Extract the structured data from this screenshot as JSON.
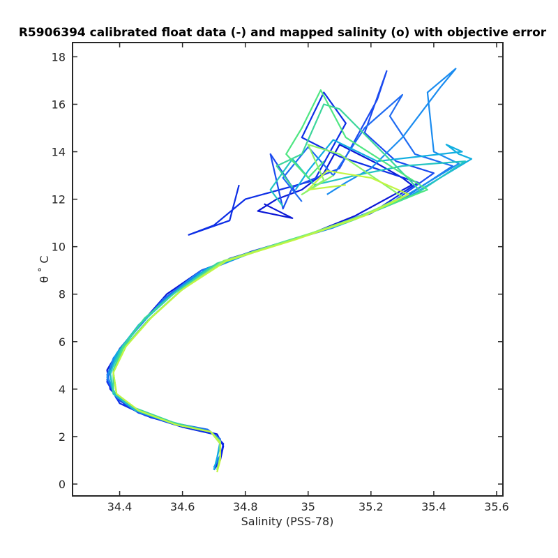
{
  "chart_data": {
    "type": "line",
    "title": "R5906394 calibrated float data (-) and mapped salinity (o) with objective error",
    "xlabel": "Salinity (PSS-78)",
    "ylabel": "θ ˚ C",
    "xlim": [
      34.25,
      35.62
    ],
    "ylim": [
      -0.5,
      18.6
    ],
    "xticks": [
      34.4,
      34.6,
      34.8,
      35,
      35.2,
      35.4,
      35.6
    ],
    "xtick_labels": [
      "34.4",
      "34.6",
      "34.8",
      "35",
      "35.2",
      "35.4",
      "35.6"
    ],
    "yticks": [
      0,
      2,
      4,
      6,
      8,
      10,
      12,
      14,
      16,
      18
    ],
    "ytick_labels": [
      "0",
      "2",
      "4",
      "6",
      "8",
      "10",
      "12",
      "14",
      "16",
      "18"
    ],
    "grid": false,
    "colormap": "parula (blue to yellow-green by profile number)",
    "series": [
      {
        "color": "#0a17d6",
        "values": [
          [
            34.7,
            0.6
          ],
          [
            34.72,
            1.0
          ],
          [
            34.73,
            1.6
          ],
          [
            34.71,
            2.1
          ],
          [
            34.62,
            2.4
          ],
          [
            34.5,
            2.8
          ],
          [
            34.42,
            3.3
          ],
          [
            34.37,
            4.0
          ],
          [
            34.36,
            4.8
          ],
          [
            34.4,
            5.7
          ],
          [
            34.47,
            6.8
          ],
          [
            34.55,
            8.0
          ],
          [
            34.66,
            9.0
          ],
          [
            34.82,
            9.8
          ],
          [
            35.0,
            10.5
          ],
          [
            35.15,
            11.3
          ],
          [
            35.33,
            12.6
          ],
          [
            35.3,
            12.9
          ],
          [
            35.22,
            13.5
          ],
          [
            35.1,
            14.3
          ],
          [
            35.05,
            13.1
          ],
          [
            34.98,
            12.4
          ],
          [
            34.9,
            12.0
          ],
          [
            34.84,
            11.5
          ],
          [
            34.95,
            11.2
          ],
          [
            34.86,
            11.8
          ]
        ]
      },
      {
        "color": "#0d2ee6",
        "values": [
          [
            34.7,
            0.6
          ],
          [
            34.72,
            1.1
          ],
          [
            34.73,
            1.7
          ],
          [
            34.7,
            2.1
          ],
          [
            34.6,
            2.4
          ],
          [
            34.48,
            2.9
          ],
          [
            34.4,
            3.4
          ],
          [
            34.36,
            4.3
          ],
          [
            34.37,
            5.0
          ],
          [
            34.42,
            6.0
          ],
          [
            34.5,
            7.2
          ],
          [
            34.6,
            8.4
          ],
          [
            34.75,
            9.5
          ],
          [
            34.95,
            10.3
          ],
          [
            35.2,
            11.4
          ],
          [
            35.35,
            12.7
          ],
          [
            35.1,
            13.8
          ],
          [
            34.98,
            14.6
          ],
          [
            35.05,
            16.5
          ],
          [
            35.12,
            15.2
          ],
          [
            35.02,
            12.8
          ],
          [
            34.8,
            12.0
          ],
          [
            34.7,
            10.9
          ],
          [
            34.62,
            10.5
          ],
          [
            34.75,
            11.1
          ],
          [
            34.78,
            12.6
          ]
        ]
      },
      {
        "color": "#1c4bf0",
        "values": [
          [
            34.7,
            0.7
          ],
          [
            34.72,
            1.2
          ],
          [
            34.72,
            1.8
          ],
          [
            34.69,
            2.2
          ],
          [
            34.58,
            2.5
          ],
          [
            34.46,
            3.0
          ],
          [
            34.39,
            3.6
          ],
          [
            34.36,
            4.4
          ],
          [
            34.38,
            5.2
          ],
          [
            34.44,
            6.3
          ],
          [
            34.52,
            7.5
          ],
          [
            34.63,
            8.7
          ],
          [
            34.8,
            9.7
          ],
          [
            35.02,
            10.6
          ],
          [
            35.25,
            11.7
          ],
          [
            35.4,
            13.1
          ],
          [
            35.28,
            13.6
          ],
          [
            35.18,
            14.8
          ],
          [
            35.25,
            17.4
          ],
          [
            35.22,
            16.2
          ],
          [
            35.1,
            13.3
          ],
          [
            34.95,
            12.5
          ],
          [
            34.92,
            11.6
          ],
          [
            34.88,
            13.9
          ],
          [
            34.96,
            12.3
          ]
        ]
      },
      {
        "color": "#1f6cf2",
        "values": [
          [
            34.7,
            0.7
          ],
          [
            34.72,
            1.2
          ],
          [
            34.72,
            1.9
          ],
          [
            34.68,
            2.3
          ],
          [
            34.56,
            2.6
          ],
          [
            34.44,
            3.2
          ],
          [
            34.38,
            3.9
          ],
          [
            34.36,
            4.6
          ],
          [
            34.39,
            5.5
          ],
          [
            34.46,
            6.6
          ],
          [
            34.54,
            7.8
          ],
          [
            34.66,
            9.0
          ],
          [
            34.85,
            9.9
          ],
          [
            35.08,
            10.8
          ],
          [
            35.3,
            12.0
          ],
          [
            35.46,
            13.4
          ],
          [
            35.34,
            13.9
          ],
          [
            35.26,
            15.5
          ],
          [
            35.3,
            16.4
          ],
          [
            35.18,
            15.0
          ],
          [
            35.08,
            13.0
          ],
          [
            35.0,
            14.2
          ],
          [
            34.92,
            12.9
          ],
          [
            34.98,
            11.9
          ]
        ]
      },
      {
        "color": "#1a8cf0",
        "values": [
          [
            34.7,
            0.6
          ],
          [
            34.71,
            1.1
          ],
          [
            34.72,
            1.7
          ],
          [
            34.69,
            2.2
          ],
          [
            34.59,
            2.5
          ],
          [
            34.47,
            3.0
          ],
          [
            34.39,
            3.7
          ],
          [
            34.36,
            4.5
          ],
          [
            34.38,
            5.3
          ],
          [
            34.45,
            6.5
          ],
          [
            34.53,
            7.6
          ],
          [
            34.64,
            8.8
          ],
          [
            34.83,
            9.8
          ],
          [
            35.05,
            10.7
          ],
          [
            35.28,
            11.9
          ],
          [
            35.48,
            13.5
          ],
          [
            35.4,
            14.0
          ],
          [
            35.38,
            16.5
          ],
          [
            35.47,
            17.5
          ],
          [
            35.42,
            16.7
          ],
          [
            35.3,
            14.6
          ],
          [
            35.2,
            13.3
          ],
          [
            35.12,
            12.7
          ],
          [
            35.06,
            12.2
          ]
        ]
      },
      {
        "color": "#11aee0",
        "values": [
          [
            34.7,
            0.6
          ],
          [
            34.71,
            1.1
          ],
          [
            34.72,
            1.8
          ],
          [
            34.69,
            2.2
          ],
          [
            34.58,
            2.5
          ],
          [
            34.46,
            3.1
          ],
          [
            34.38,
            3.8
          ],
          [
            34.37,
            4.6
          ],
          [
            34.39,
            5.5
          ],
          [
            34.46,
            6.7
          ],
          [
            34.56,
            7.9
          ],
          [
            34.68,
            9.1
          ],
          [
            34.88,
            10.0
          ],
          [
            35.1,
            10.9
          ],
          [
            35.32,
            12.1
          ],
          [
            35.52,
            13.7
          ],
          [
            35.48,
            13.9
          ],
          [
            35.44,
            14.3
          ],
          [
            35.49,
            14.0
          ],
          [
            35.22,
            13.6
          ],
          [
            35.08,
            14.5
          ],
          [
            35.0,
            13.2
          ],
          [
            34.96,
            12.4
          ]
        ]
      },
      {
        "color": "#24c4c2",
        "values": [
          [
            34.71,
            0.6
          ],
          [
            34.72,
            1.1
          ],
          [
            34.72,
            1.8
          ],
          [
            34.69,
            2.2
          ],
          [
            34.58,
            2.5
          ],
          [
            34.45,
            3.1
          ],
          [
            34.38,
            3.8
          ],
          [
            34.37,
            4.7
          ],
          [
            34.4,
            5.6
          ],
          [
            34.47,
            6.8
          ],
          [
            34.57,
            8.0
          ],
          [
            34.7,
            9.2
          ],
          [
            34.9,
            10.1
          ],
          [
            35.12,
            11.0
          ],
          [
            35.34,
            12.2
          ],
          [
            35.5,
            13.6
          ],
          [
            35.3,
            13.4
          ],
          [
            35.15,
            13.0
          ],
          [
            35.02,
            12.6
          ],
          [
            34.95,
            13.7
          ],
          [
            34.88,
            12.4
          ],
          [
            34.92,
            11.7
          ]
        ]
      },
      {
        "color": "#3cd69c",
        "values": [
          [
            34.71,
            0.6
          ],
          [
            34.72,
            1.2
          ],
          [
            34.72,
            1.8
          ],
          [
            34.69,
            2.2
          ],
          [
            34.57,
            2.6
          ],
          [
            34.45,
            3.2
          ],
          [
            34.38,
            3.9
          ],
          [
            34.38,
            4.8
          ],
          [
            34.41,
            5.8
          ],
          [
            34.48,
            7.0
          ],
          [
            34.58,
            8.1
          ],
          [
            34.71,
            9.3
          ],
          [
            34.92,
            10.2
          ],
          [
            35.14,
            11.1
          ],
          [
            35.36,
            12.3
          ],
          [
            35.25,
            13.8
          ],
          [
            35.1,
            15.8
          ],
          [
            35.05,
            16.0
          ],
          [
            34.98,
            13.9
          ],
          [
            34.9,
            13.4
          ],
          [
            34.95,
            12.5
          ]
        ]
      },
      {
        "color": "#4fe682",
        "values": [
          [
            34.71,
            0.6
          ],
          [
            34.72,
            1.1
          ],
          [
            34.72,
            1.8
          ],
          [
            34.69,
            2.2
          ],
          [
            34.58,
            2.5
          ],
          [
            34.46,
            3.1
          ],
          [
            34.39,
            3.8
          ],
          [
            34.38,
            4.7
          ],
          [
            34.41,
            5.7
          ],
          [
            34.49,
            6.9
          ],
          [
            34.59,
            8.1
          ],
          [
            34.72,
            9.3
          ],
          [
            34.93,
            10.2
          ],
          [
            35.15,
            11.2
          ],
          [
            35.38,
            12.4
          ],
          [
            35.12,
            14.6
          ],
          [
            35.04,
            16.6
          ],
          [
            34.98,
            15.0
          ],
          [
            34.93,
            13.9
          ],
          [
            35.0,
            12.9
          ],
          [
            35.05,
            13.6
          ]
        ]
      },
      {
        "color": "#8cf26a",
        "values": [
          [
            34.71,
            0.6
          ],
          [
            34.72,
            1.1
          ],
          [
            34.72,
            1.8
          ],
          [
            34.69,
            2.2
          ],
          [
            34.58,
            2.5
          ],
          [
            34.46,
            3.1
          ],
          [
            34.39,
            3.8
          ],
          [
            34.38,
            4.7
          ],
          [
            34.42,
            5.8
          ],
          [
            34.5,
            7.0
          ],
          [
            34.6,
            8.2
          ],
          [
            34.73,
            9.4
          ],
          [
            34.95,
            10.3
          ],
          [
            35.17,
            11.3
          ],
          [
            35.3,
            12.1
          ],
          [
            35.1,
            13.9
          ],
          [
            35.0,
            14.3
          ],
          [
            35.05,
            12.8
          ],
          [
            34.98,
            12.2
          ],
          [
            35.08,
            13.0
          ]
        ]
      },
      {
        "color": "#c2f542",
        "values": [
          [
            34.71,
            0.5
          ],
          [
            34.72,
            1.0
          ],
          [
            34.72,
            1.7
          ],
          [
            34.69,
            2.2
          ],
          [
            34.58,
            2.5
          ],
          [
            34.46,
            3.1
          ],
          [
            34.39,
            3.8
          ],
          [
            34.38,
            4.7
          ],
          [
            34.42,
            5.8
          ],
          [
            34.5,
            7.0
          ],
          [
            34.6,
            8.2
          ],
          [
            34.74,
            9.4
          ],
          [
            34.96,
            10.3
          ],
          [
            35.18,
            11.3
          ],
          [
            35.32,
            12.2
          ],
          [
            35.2,
            12.9
          ],
          [
            35.06,
            13.2
          ],
          [
            35.0,
            12.4
          ],
          [
            35.12,
            12.6
          ]
        ]
      }
    ]
  }
}
